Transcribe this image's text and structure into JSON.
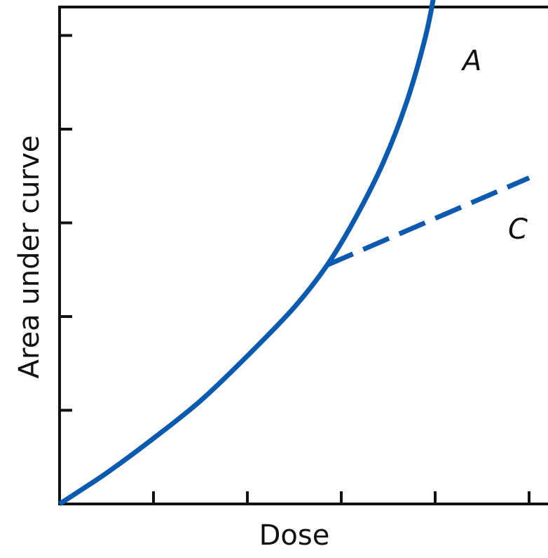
{
  "chart_data": {
    "type": "line",
    "title": "",
    "xlabel": "Dose",
    "ylabel": "Area under curve",
    "xlim": [
      0,
      5
    ],
    "ylim": [
      0,
      5
    ],
    "x_ticks": [
      1,
      2,
      3,
      4,
      5
    ],
    "y_ticks": [
      1,
      2,
      3,
      4,
      5
    ],
    "tick_labels_shown": false,
    "grid": false,
    "legend": "none",
    "series": [
      {
        "name": "A",
        "style": "solid",
        "color": "#0a5ab0",
        "points": [
          [
            0,
            0
          ],
          [
            0.5,
            0.33
          ],
          [
            1,
            0.7
          ],
          [
            1.5,
            1.1
          ],
          [
            2,
            1.58
          ],
          [
            2.5,
            2.1
          ],
          [
            2.85,
            2.55
          ],
          [
            3.15,
            3.05
          ],
          [
            3.45,
            3.65
          ],
          [
            3.7,
            4.3
          ],
          [
            3.9,
            5.0
          ],
          [
            4.0,
            5.5
          ]
        ]
      },
      {
        "name": "C",
        "style": "dashed",
        "color": "#0a5ab0",
        "points": [
          [
            2.85,
            2.55
          ],
          [
            5.0,
            3.48
          ]
        ]
      }
    ]
  }
}
